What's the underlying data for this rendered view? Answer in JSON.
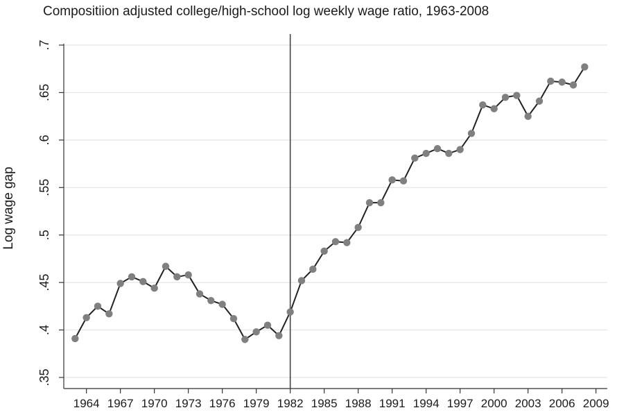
{
  "chart_data": {
    "type": "line",
    "title": "Compositiion adjusted college/high-school log weekly wage ratio, 1963-2008",
    "xlabel": "",
    "ylabel": "Log wage gap",
    "xlim": [
      1962,
      2010
    ],
    "ylim": [
      0.35,
      0.7
    ],
    "x_ticks": [
      1964,
      1967,
      1970,
      1973,
      1976,
      1979,
      1982,
      1985,
      1988,
      1991,
      1994,
      1997,
      2000,
      2003,
      2006,
      2009
    ],
    "y_ticks": [
      0.35,
      0.4,
      0.45,
      0.5,
      0.55,
      0.6,
      0.65,
      0.7
    ],
    "y_tick_labels": [
      ".35",
      ".4",
      ".45",
      ".5",
      ".55",
      ".6",
      ".65",
      ".7"
    ],
    "grid": "horizontal",
    "reference_line_x": 1982,
    "colors": {
      "line": "#222222",
      "marker": "#808080",
      "grid": "#e4e4e4",
      "axis": "#333333"
    },
    "series": [
      {
        "x": [
          1963,
          1964,
          1965,
          1966,
          1967,
          1968,
          1969,
          1970,
          1971,
          1972,
          1973,
          1974,
          1975,
          1976,
          1977,
          1978,
          1979,
          1980,
          1981,
          1982,
          1983,
          1984,
          1985,
          1986,
          1987,
          1988,
          1989,
          1990,
          1991,
          1992,
          1993,
          1994,
          1995,
          1996,
          1997,
          1998,
          1999,
          2000,
          2001,
          2002,
          2003,
          2004,
          2005,
          2006,
          2007,
          2008
        ],
        "values": [
          0.391,
          0.413,
          0.425,
          0.417,
          0.449,
          0.456,
          0.451,
          0.444,
          0.467,
          0.456,
          0.458,
          0.438,
          0.431,
          0.427,
          0.412,
          0.39,
          0.398,
          0.405,
          0.394,
          0.419,
          0.452,
          0.464,
          0.483,
          0.493,
          0.492,
          0.508,
          0.534,
          0.534,
          0.558,
          0.557,
          0.581,
          0.586,
          0.591,
          0.586,
          0.59,
          0.607,
          0.637,
          0.633,
          0.645,
          0.647,
          0.625,
          0.641,
          0.662,
          0.661,
          0.658,
          0.677
        ]
      }
    ]
  }
}
